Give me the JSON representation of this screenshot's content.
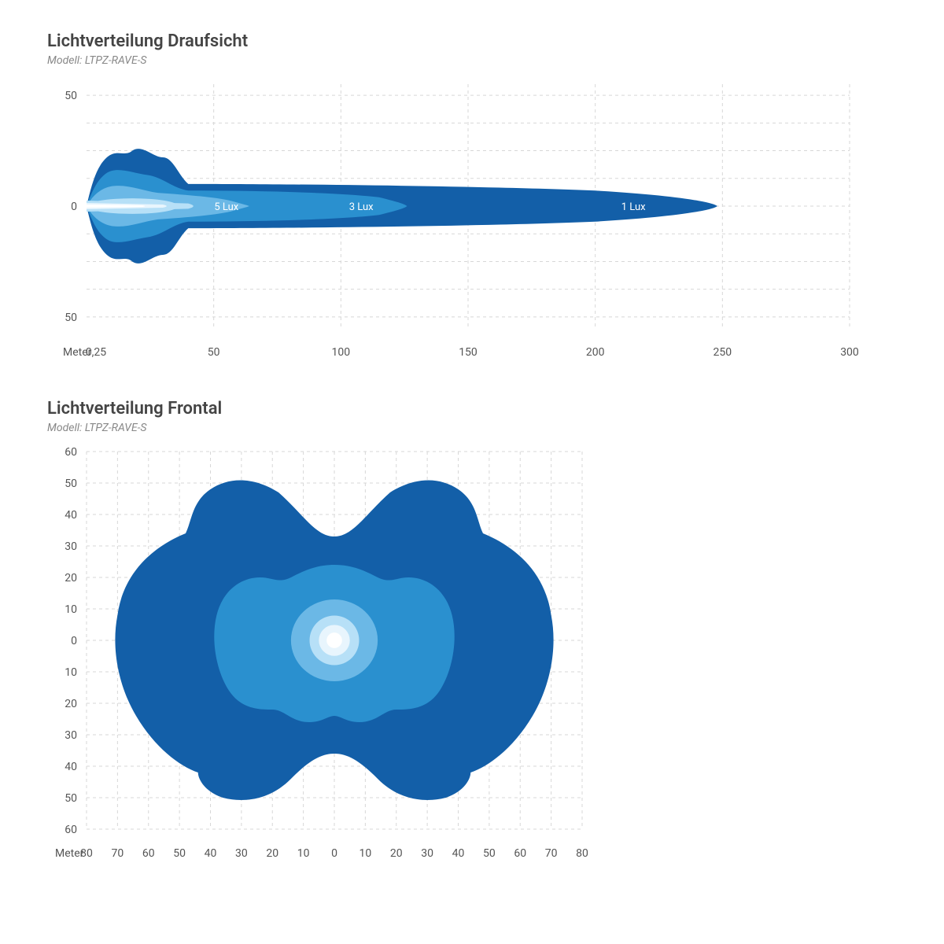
{
  "colors": {
    "background": "#ffffff",
    "grid": "#d7d7d7",
    "axis_text": "#555555",
    "title_text": "#444444",
    "subtitle_text": "#888888",
    "lux1": "#135fa8",
    "lux3": "#2a90cf",
    "lux5": "#6bb8e6",
    "core1": "#b7e0f7",
    "core2": "#e8f5fd",
    "core_center": "#ffffff"
  },
  "top_chart": {
    "title": "Lichtverteilung Draufsicht",
    "subtitle": "Modell: LTPZ-RAVE-S",
    "unit_label": "Meter",
    "x_origin_label": "0,25",
    "x_ticks": [
      50,
      100,
      150,
      200,
      250,
      300
    ],
    "y_ticks_top": [
      50
    ],
    "y_center_label": "0",
    "y_ticks_bottom": [
      50
    ],
    "labels": {
      "lux5": "5 Lux",
      "lux3": "3 Lux",
      "lux1": "1 Lux"
    },
    "label_positions_m": {
      "lux5": 55,
      "lux3": 108,
      "lux1": 215
    },
    "xlim": [
      0,
      300
    ],
    "ylim": [
      -55,
      55
    ],
    "grid_x_step": 50,
    "grid_y_lines": [
      50,
      0,
      -50
    ]
  },
  "bottom_chart": {
    "title": "Lichtverteilung Frontal",
    "subtitle": "Modell: LTPZ-RAVE-S",
    "unit_label": "Meter",
    "x_ticks": [
      80,
      70,
      60,
      50,
      40,
      30,
      20,
      10,
      0,
      10,
      20,
      30,
      40,
      50,
      60,
      70,
      80
    ],
    "y_ticks_top": [
      60,
      50,
      40,
      30,
      20,
      10
    ],
    "y_center_label": "0",
    "y_ticks_bottom": [
      10,
      20,
      30,
      40,
      50,
      60
    ],
    "xlim": [
      -80,
      80
    ],
    "ylim": [
      -60,
      60
    ],
    "grid_step": 10
  }
}
